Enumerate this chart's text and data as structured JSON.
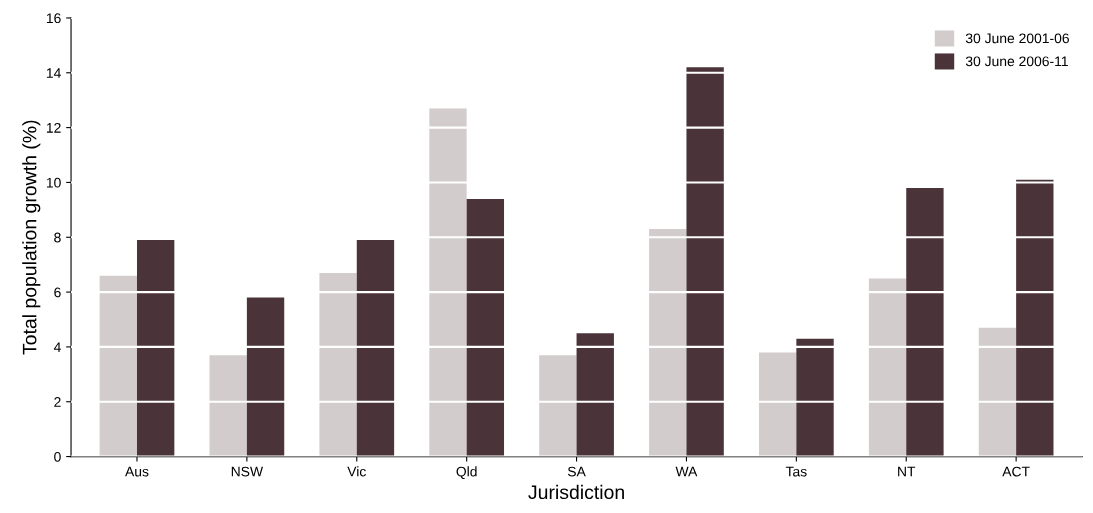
{
  "chart_data": {
    "type": "bar",
    "xlabel": "Jurisdiction",
    "ylabel": "Total population growth (%)",
    "categories": [
      "Aus",
      "NSW",
      "Vic",
      "Qld",
      "SA",
      "WA",
      "Tas",
      "NT",
      "ACT"
    ],
    "series": [
      {
        "name": "30 June 2001-06",
        "color": "#d3cccd",
        "values": [
          6.6,
          3.7,
          6.7,
          12.7,
          3.7,
          8.3,
          3.8,
          6.5,
          4.7
        ]
      },
      {
        "name": "30 June 2006-11",
        "color": "#4a3439",
        "values": [
          7.9,
          5.8,
          7.9,
          9.4,
          4.5,
          14.2,
          4.3,
          9.8,
          10.1
        ]
      }
    ],
    "ylim": [
      0,
      16
    ],
    "yticks": [
      0,
      2,
      4,
      6,
      8,
      10,
      12,
      14,
      16
    ],
    "grid": "y",
    "legend": "top right"
  }
}
